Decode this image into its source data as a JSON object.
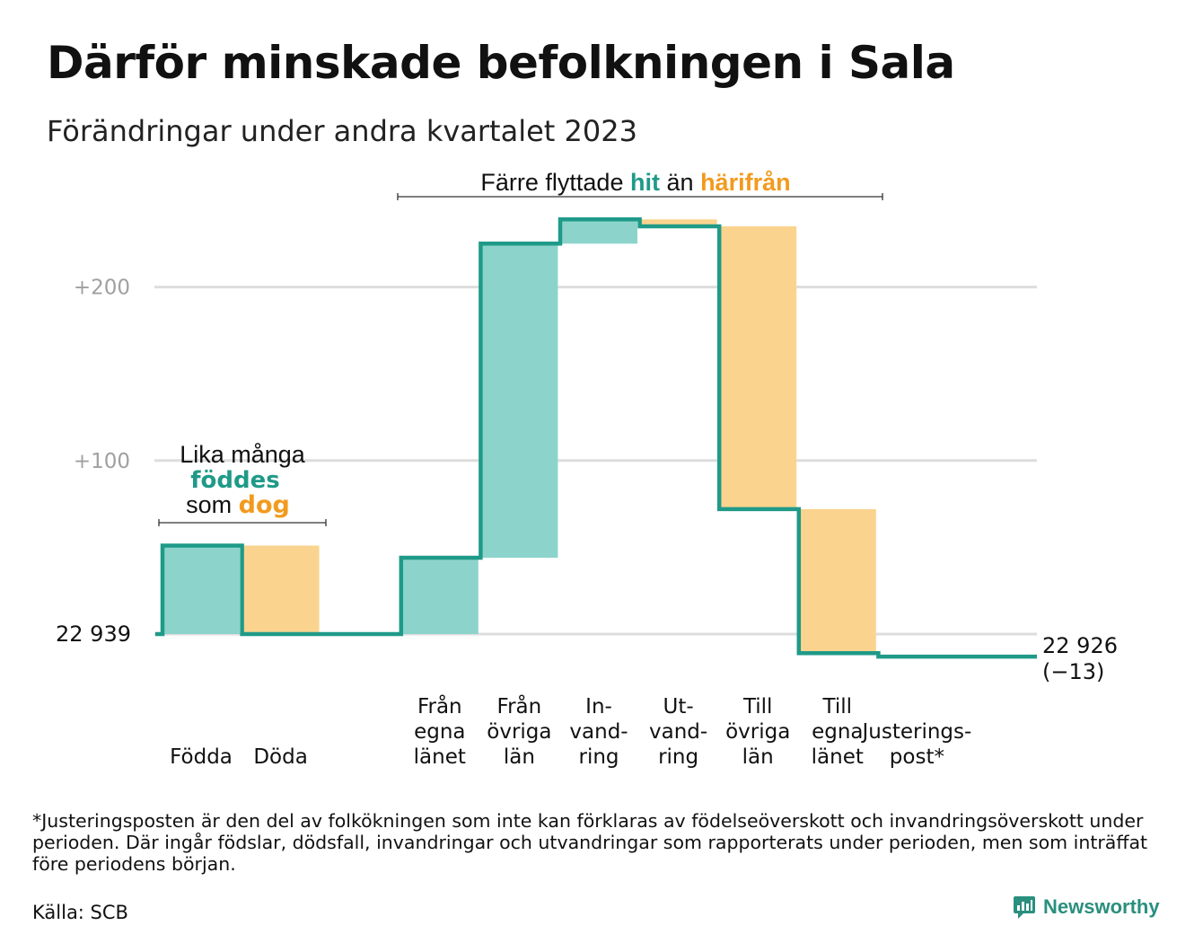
{
  "title": "Därför minskade befolkningen i Sala",
  "subtitle": "Förändringar under andra kvartalet 2023",
  "colors": {
    "in": "#8cd4cb",
    "out": "#fad48e",
    "line": "#1f9a88",
    "teal_text": "#1f9a88",
    "orange_text": "#f29a1e",
    "grid": "#dddddd",
    "tick_text": "#a0a0a0"
  },
  "annotations": {
    "moves": {
      "prefix": "Färre flyttade",
      "hit": "hit",
      "middle": "än",
      "harifran": "härifrån"
    },
    "births": {
      "line1": "Lika många",
      "fodda": "föddes",
      "som": "som",
      "dog": "dog"
    }
  },
  "start_label": "22 939",
  "end_label": {
    "value": "22 926",
    "change": "(−13)"
  },
  "footnote": "*Justeringsposten är den del av folkökningen som inte kan förklaras av födelseöverskott och invandringsöverskott under perioden. Där ingår födslar, dödsfall, invandringar och utvandringar som rapporterats under perioden, men som inträffat före periodens början.",
  "source": "Källa: SCB",
  "brand": "Newsworthy",
  "chart_data": {
    "type": "bar",
    "title": "Därför minskade befolkningen i Sala",
    "subtitle": "Förändringar under andra kvartalet 2023",
    "start_value": 22939,
    "end_value": 22926,
    "net_change": -13,
    "y_axis_ticks": [
      {
        "value": 100,
        "label": "+100"
      },
      {
        "value": 200,
        "label": "+200"
      }
    ],
    "ylim": [
      -20,
      245
    ],
    "grid": true,
    "categories": [
      {
        "lines": [
          "Födda"
        ],
        "value": 51,
        "kind": "in"
      },
      {
        "lines": [
          "Döda"
        ],
        "value": -51,
        "kind": "out"
      },
      {
        "lines": [],
        "value": 0,
        "kind": "none"
      },
      {
        "lines": [
          "Från",
          "egna",
          "länet"
        ],
        "value": 44,
        "kind": "in"
      },
      {
        "lines": [
          "Från",
          "övriga",
          "län"
        ],
        "value": 181,
        "kind": "in"
      },
      {
        "lines": [
          "In-",
          "vand-",
          "ring"
        ],
        "value": 14,
        "kind": "in"
      },
      {
        "lines": [
          "Ut-",
          "vand-",
          "ring"
        ],
        "value": -4,
        "kind": "out"
      },
      {
        "lines": [
          "Till",
          "övriga",
          "län"
        ],
        "value": -163,
        "kind": "out"
      },
      {
        "lines": [
          "Till",
          "egna",
          "länet"
        ],
        "value": -83,
        "kind": "out"
      },
      {
        "lines": [
          "Justerings-",
          "post*"
        ],
        "value": -2,
        "kind": "adjust"
      }
    ]
  }
}
